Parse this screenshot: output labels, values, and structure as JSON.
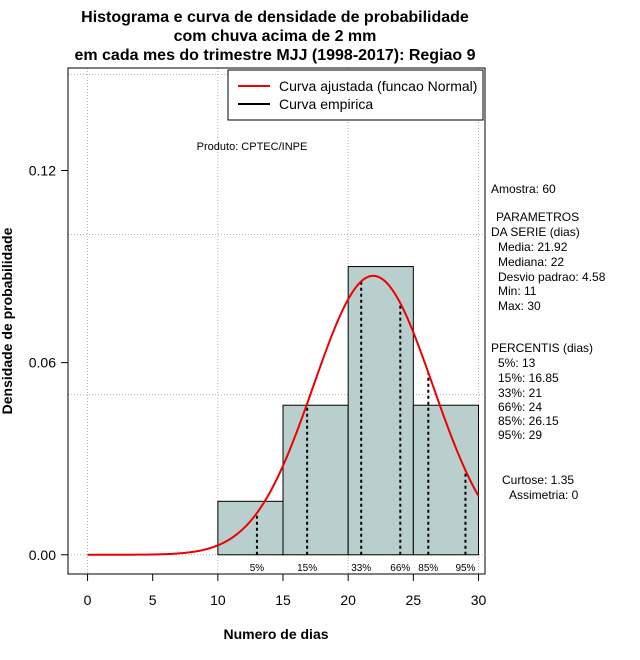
{
  "chart_data": {
    "type": "histogram",
    "title": [
      "Histograma e curva de densidade de probabilidade",
      "com chuva acima de 2 mm",
      "em cada mes do trimestre MJJ (1998-2017): Regiao 9"
    ],
    "xlabel": "Numero de dias",
    "ylabel": "Densidade de probabilidade",
    "xlim": [
      -1.5,
      30.5
    ],
    "ylim": [
      -0.006,
      0.152
    ],
    "x_ticks": [
      "0",
      "5",
      "10",
      "15",
      "20",
      "25",
      "30"
    ],
    "x_tick_values": [
      0,
      5,
      10,
      15,
      20,
      25,
      30
    ],
    "y_ticks": [
      "0.00",
      "0.06",
      "0.12"
    ],
    "y_tick_values": [
      0.0,
      0.06,
      0.12
    ],
    "x_grid_values": [
      0,
      10,
      20,
      30
    ],
    "y_grid_values": [
      0.0,
      0.05,
      0.1,
      0.15
    ],
    "bins": [
      {
        "start": 10,
        "end": 15,
        "density": 0.0167
      },
      {
        "start": 15,
        "end": 20,
        "density": 0.0467
      },
      {
        "start": 20,
        "end": 25,
        "density": 0.09
      },
      {
        "start": 25,
        "end": 30,
        "density": 0.0467
      }
    ],
    "normal_curve": {
      "mean": 21.92,
      "sd": 4.58,
      "x_start": 0,
      "x_end": 30
    },
    "percentile_marks": [
      {
        "label": "5%",
        "x": 13
      },
      {
        "label": "15%",
        "x": 16.85
      },
      {
        "label": "33%",
        "x": 21
      },
      {
        "label": "66%",
        "x": 24
      },
      {
        "label": "85%",
        "x": 26.15
      },
      {
        "label": "95%",
        "x": 29
      }
    ],
    "legend": {
      "position": "top-right",
      "entries": [
        {
          "label": "Curva ajustada (funcao Normal)",
          "color": "#ff0000"
        },
        {
          "label": "Curva empirica",
          "color": "#000000"
        }
      ]
    },
    "annotation": "Produto: CPTEC/INPE"
  },
  "colors": {
    "bar_fill": "#b9cfcd",
    "curve": "#ee0000",
    "grid": "#b4b4b4",
    "text": "#000000"
  },
  "side_panel": {
    "amostra": "Amostra: 60",
    "params_title_1": "PARAMETROS",
    "params_title_2": "DA SERIE (dias)",
    "media": "Media: 21.92",
    "mediana": "Mediana: 22",
    "desvio": "Desvio padrao: 4.58",
    "min": "Min: 11",
    "max": "Max: 30",
    "percentis_title": "PERCENTIS (dias)",
    "p5": "5%: 13",
    "p15": "15%: 16.85",
    "p33": "33%: 21",
    "p66": "66%: 24",
    "p85": "85%: 26.15",
    "p95": "95%: 29",
    "curtose": "Curtose: 1.35",
    "assimetria": "Assimetria: 0"
  }
}
